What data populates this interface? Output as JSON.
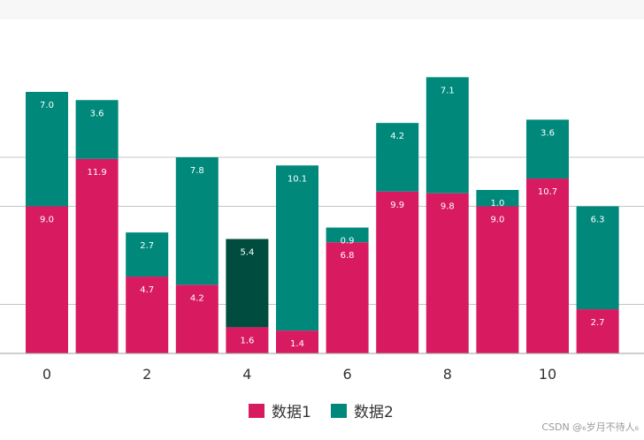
{
  "chart_data": {
    "type": "bar",
    "stacked": true,
    "categories": [
      "0",
      "1",
      "2",
      "3",
      "4",
      "5",
      "6",
      "7",
      "8",
      "9",
      "10",
      "11"
    ],
    "x_tick_labels": [
      "0",
      "2",
      "4",
      "6",
      "8",
      "10"
    ],
    "series": [
      {
        "name": "数据1",
        "color": "#d81b60",
        "values": [
          9.0,
          11.9,
          4.7,
          4.2,
          1.6,
          1.4,
          6.8,
          9.9,
          9.8,
          9.0,
          10.7,
          2.7
        ]
      },
      {
        "name": "数据2",
        "color": "#00897b",
        "values": [
          7.0,
          3.6,
          2.7,
          7.8,
          5.4,
          10.1,
          0.9,
          4.2,
          7.1,
          1.0,
          3.6,
          6.3
        ]
      }
    ],
    "highlight": {
      "index": 4,
      "series": 1,
      "color": "#004d40"
    },
    "legend_position": "bottom",
    "grid": "horizontal",
    "gridlines": [
      12.0,
      9.0,
      3.0
    ]
  },
  "watermark": "CSDN @₆岁月不待人₆"
}
